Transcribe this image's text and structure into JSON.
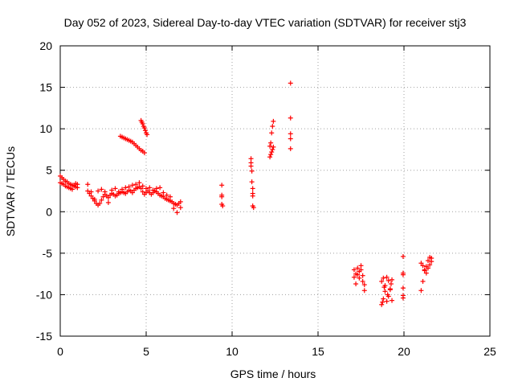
{
  "chart_data": {
    "type": "scatter",
    "title": "Day 052 of 2023, Sidereal Day-to-day VTEC variation (SDTVAR) for receiver stj3",
    "xlabel": "GPS time / hours",
    "ylabel": "SDTVAR / TECUs",
    "xlim": [
      0,
      25
    ],
    "ylim": [
      -15,
      20
    ],
    "xticks": [
      "0",
      "5",
      "10",
      "15",
      "20",
      "25"
    ],
    "yticks": [
      "20",
      "15",
      "10",
      "5",
      "0",
      "-5",
      "-10",
      "-15"
    ],
    "grid": true,
    "marker": "+",
    "color": "#ff0000",
    "series": [
      {
        "segments": [
          {
            "x": [
              0.0,
              0.1,
              0.2,
              0.3,
              0.4,
              0.5,
              0.6,
              0.7,
              0.8,
              0.9,
              1.0
            ],
            "y": [
              4.3,
              4.1,
              3.9,
              3.7,
              3.6,
              3.4,
              3.3,
              3.2,
              3.1,
              3.0,
              2.9
            ]
          },
          {
            "x": [
              0.0,
              0.1,
              0.2,
              0.3,
              0.4,
              0.5,
              0.6,
              0.7,
              0.8,
              0.9,
              1.0
            ],
            "y": [
              3.5,
              3.4,
              3.3,
              3.1,
              3.0,
              2.9,
              2.8,
              2.7,
              3.2,
              3.4,
              3.3
            ]
          },
          {
            "x": [
              1.6,
              1.7,
              1.8,
              1.9,
              2.0,
              2.1,
              2.2,
              2.3,
              2.4,
              2.5,
              2.6,
              2.7,
              2.8,
              2.9,
              3.0,
              3.1,
              3.2,
              3.3,
              3.4,
              3.5,
              3.6,
              3.7,
              3.8,
              3.9,
              4.0,
              4.1,
              4.2,
              4.3,
              4.4,
              4.5,
              4.6,
              4.7,
              4.8,
              4.9,
              5.0,
              5.1,
              5.2,
              5.3,
              5.4,
              5.5,
              5.6,
              5.7,
              5.8,
              5.9,
              6.0,
              6.1,
              6.2,
              6.3,
              6.4,
              6.5,
              6.6,
              6.7,
              6.8,
              6.9,
              7.0
            ],
            "y": [
              2.5,
              2.2,
              1.9,
              1.6,
              1.3,
              1.0,
              0.8,
              1.0,
              1.4,
              1.8,
              2.1,
              1.9,
              1.7,
              2.0,
              2.2,
              2.1,
              1.9,
              2.0,
              2.2,
              2.3,
              2.4,
              2.3,
              2.2,
              2.4,
              2.6,
              2.5,
              2.3,
              2.6,
              2.8,
              2.9,
              3.0,
              2.8,
              2.4,
              2.1,
              2.3,
              2.5,
              2.3,
              2.1,
              2.3,
              2.5,
              2.4,
              2.2,
              2.0,
              1.9,
              1.8,
              1.6,
              1.5,
              1.4,
              1.3,
              1.2,
              1.0,
              0.9,
              0.8,
              1.0,
              1.2
            ]
          },
          {
            "x": [
              1.6,
              1.8,
              2.0,
              2.2,
              2.4,
              2.6,
              2.8,
              3.0,
              3.2,
              3.4,
              3.6,
              3.8,
              4.0,
              4.2,
              4.4,
              4.6,
              4.8,
              5.0,
              5.2,
              5.4,
              5.6,
              5.8,
              6.0,
              6.2,
              6.4,
              6.6,
              6.8,
              7.0
            ],
            "y": [
              3.3,
              2.4,
              1.5,
              2.5,
              2.7,
              2.4,
              1.1,
              2.6,
              2.8,
              2.4,
              2.7,
              2.9,
              3.0,
              3.2,
              3.3,
              3.5,
              3.1,
              2.8,
              2.9,
              2.6,
              2.8,
              2.9,
              2.3,
              2.0,
              1.8,
              0.4,
              -0.1,
              0.5
            ]
          },
          {
            "x": [
              3.5,
              3.6,
              3.7,
              3.8,
              3.9,
              4.0,
              4.1,
              4.2,
              4.3,
              4.4,
              4.5,
              4.6,
              4.7,
              4.8,
              4.9
            ],
            "y": [
              9.1,
              9.0,
              8.9,
              8.8,
              8.7,
              8.6,
              8.5,
              8.4,
              8.2,
              8.0,
              7.8,
              7.6,
              7.4,
              7.3,
              7.1
            ]
          },
          {
            "x": [
              4.7,
              4.75,
              4.8,
              4.85,
              4.9,
              4.95,
              5.0,
              5.05
            ],
            "y": [
              11.0,
              10.8,
              10.6,
              10.3,
              10.1,
              9.8,
              9.5,
              9.3
            ]
          },
          {
            "x": [
              9.4,
              9.4,
              9.4,
              9.4,
              9.45
            ],
            "y": [
              3.2,
              2.0,
              1.8,
              0.9,
              0.7
            ]
          },
          {
            "x": [
              11.1,
              11.1,
              11.1,
              11.15,
              11.15,
              11.2,
              11.2,
              11.2,
              11.2,
              11.25
            ],
            "y": [
              6.4,
              5.9,
              5.5,
              4.9,
              3.6,
              2.8,
              2.2,
              1.9,
              0.7,
              0.5
            ]
          },
          {
            "x": [
              12.2,
              12.25,
              12.3,
              12.35,
              12.4,
              12.2,
              12.25,
              12.3,
              12.35,
              12.4
            ],
            "y": [
              7.9,
              8.3,
              9.5,
              10.3,
              10.9,
              6.6,
              6.9,
              7.2,
              7.5,
              7.8
            ]
          },
          {
            "x": [
              13.4,
              13.4,
              13.4,
              13.4,
              13.4
            ],
            "y": [
              15.5,
              11.3,
              9.4,
              8.8,
              7.6
            ]
          },
          {
            "x": [
              17.1,
              17.2,
              17.3,
              17.4,
              17.5,
              17.6,
              17.7,
              17.1,
              17.2,
              17.3,
              17.4,
              17.5,
              17.6,
              17.7
            ],
            "y": [
              -7.0,
              -7.5,
              -6.8,
              -8.0,
              -7.0,
              -8.4,
              -9.5,
              -7.9,
              -8.7,
              -7.6,
              -7.2,
              -6.5,
              -7.7,
              -8.8
            ]
          },
          {
            "x": [
              18.7,
              18.8,
              18.9,
              19.0,
              19.1,
              19.2,
              19.3,
              18.7,
              18.8,
              18.9,
              19.0,
              19.1,
              19.2,
              19.3,
              18.75,
              18.85,
              19.05,
              19.25
            ],
            "y": [
              -11.2,
              -10.5,
              -9.6,
              -10.8,
              -10.2,
              -9.4,
              -10.7,
              -8.4,
              -8.0,
              -8.9,
              -7.9,
              -8.3,
              -9.3,
              -8.2,
              -10.9,
              -9.1,
              -10.0,
              -8.7
            ]
          },
          {
            "x": [
              19.95,
              19.95,
              19.95,
              19.95,
              19.95,
              19.95
            ],
            "y": [
              -5.4,
              -7.4,
              -7.6,
              -9.2,
              -10.1,
              -10.4
            ]
          },
          {
            "x": [
              21.0,
              21.1,
              21.2,
              21.3,
              21.4,
              21.5,
              21.6,
              21.0,
              21.1,
              21.2,
              21.3,
              21.4,
              21.5,
              21.6
            ],
            "y": [
              -9.5,
              -8.4,
              -7.0,
              -6.6,
              -5.9,
              -5.5,
              -5.6,
              -6.2,
              -6.5,
              -7.1,
              -7.4,
              -6.8,
              -6.4,
              -6.0
            ]
          }
        ]
      }
    ]
  }
}
